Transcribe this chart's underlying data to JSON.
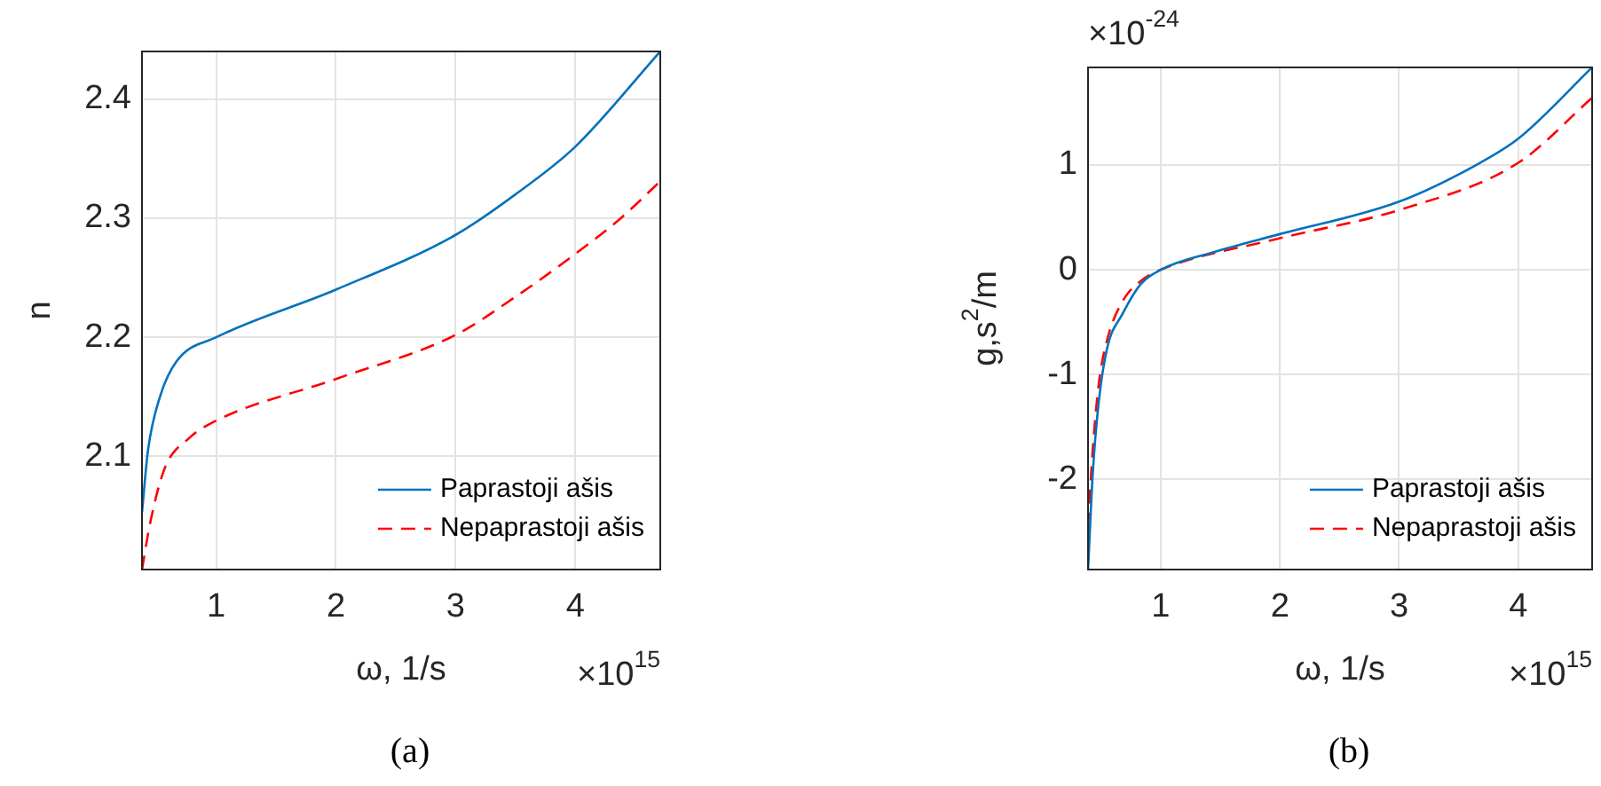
{
  "chart_data": [
    {
      "type": "line",
      "title": "(a)",
      "xlabel": "ω, 1/s",
      "ylabel": "n",
      "annotations": [
        "×10$^{15}$"
      ],
      "xlim": [
        0.38,
        4.71
      ],
      "xticks": [
        1,
        2,
        3,
        4
      ],
      "ylim": [
        2.005,
        2.44
      ],
      "yticks": [
        2.1,
        2.2,
        2.3,
        2.4
      ],
      "grid": true,
      "legend": "bottom right",
      "marker": "none",
      "series": [
        {
          "name": "Paprastoji ašis",
          "color": "#0072bd",
          "line_style": "solid",
          "x": [
            0.38,
            0.43,
            0.53,
            0.67,
            1.0,
            2.0,
            3.0,
            3.5,
            4.0,
            4.71
          ],
          "values": [
            2.053,
            2.105,
            2.15,
            2.18,
            2.2,
            2.24,
            2.286,
            2.32,
            2.36,
            2.44
          ]
        },
        {
          "name": "Nepaprastoji ašis",
          "color": "#ff0000",
          "line_style": "dashed",
          "x": [
            0.38,
            0.45,
            0.57,
            0.77,
            1.0,
            2.0,
            3.0,
            3.5,
            4.0,
            4.38,
            4.71
          ],
          "values": [
            2.005,
            2.045,
            2.09,
            2.115,
            2.13,
            2.165,
            2.202,
            2.234,
            2.27,
            2.3,
            2.331
          ]
        }
      ]
    },
    {
      "type": "line",
      "title": "(b)",
      "xlabel": "ω, 1/s",
      "ylabel": "g,s$^{2}$/m",
      "annotations": [
        "×10$^{-24}$",
        "×10$^{15}$"
      ],
      "xlim": [
        0.39,
        4.62
      ],
      "xticks": [
        1,
        2,
        3,
        4
      ],
      "ylim": [
        -2.86,
        1.93
      ],
      "yticks": [
        -2,
        -1,
        0,
        1
      ],
      "grid": true,
      "legend": "bottom right",
      "marker": "none",
      "series": [
        {
          "name": "Paprastoji ašis",
          "color": "#0072bd",
          "line_style": "solid",
          "x": [
            0.39,
            0.43,
            0.48,
            0.55,
            0.68,
            0.83,
            1.0,
            1.45,
            2.0,
            3.0,
            3.68,
            4.0,
            4.62
          ],
          "values": [
            -2.86,
            -1.94,
            -1.26,
            -0.75,
            -0.42,
            -0.14,
            0,
            0.17,
            0.34,
            0.65,
            1.02,
            1.25,
            1.93
          ]
        },
        {
          "name": "Nepaprastoji ašis",
          "color": "#ff0000",
          "line_style": "dashed",
          "x": [
            0.39,
            0.43,
            0.48,
            0.55,
            0.68,
            0.83,
            1.0,
            2.0,
            3.0,
            4.0,
            4.62
          ],
          "values": [
            -2.45,
            -1.71,
            -1.09,
            -0.67,
            -0.3,
            -0.11,
            0,
            0.3,
            0.57,
            1.02,
            1.64
          ]
        }
      ]
    }
  ]
}
